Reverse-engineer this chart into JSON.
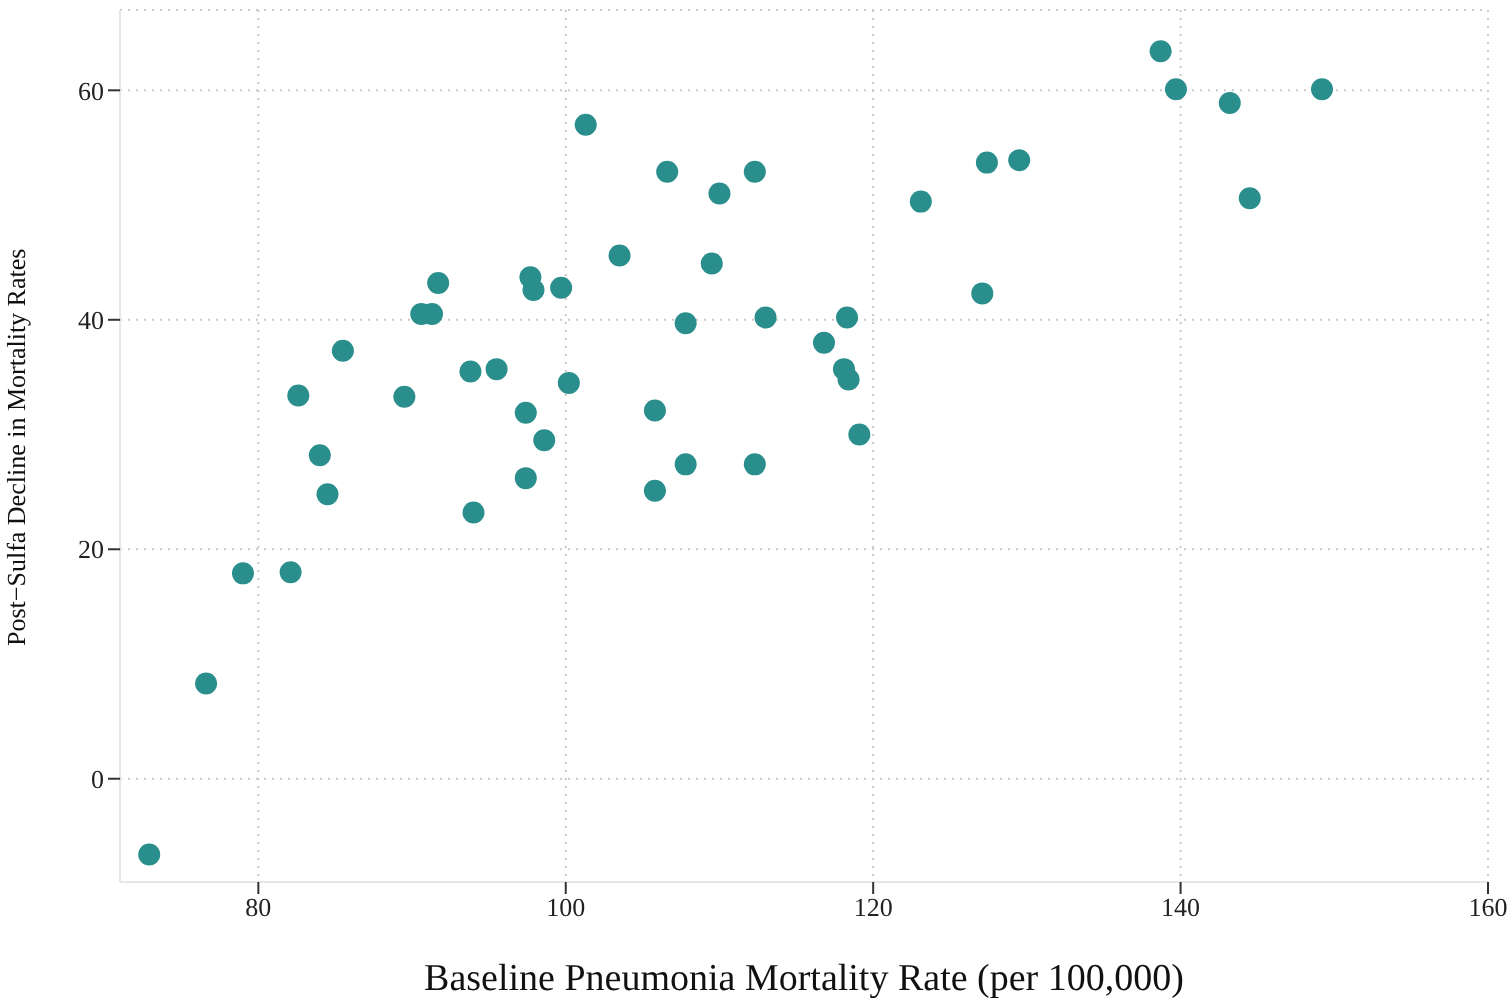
{
  "chart_data": {
    "type": "scatter",
    "xlabel": "Baseline Pneumonia Mortality Rate (per 100,000)",
    "ylabel": "Post−Sulfa Decline in Mortality Rates",
    "x": [
      72.9,
      76.6,
      79.0,
      82.1,
      82.6,
      84.0,
      84.5,
      85.5,
      89.5,
      90.6,
      91.3,
      91.7,
      93.8,
      94.0,
      95.5,
      97.4,
      97.4,
      97.7,
      97.9,
      98.6,
      99.7,
      100.2,
      101.3,
      103.5,
      105.8,
      105.8,
      106.6,
      107.8,
      107.8,
      109.5,
      110.0,
      112.3,
      112.3,
      113.0,
      116.8,
      118.1,
      118.3,
      118.4,
      119.1,
      123.1,
      127.1,
      127.4,
      129.5,
      138.7,
      139.7,
      143.2,
      144.5,
      149.2
    ],
    "series": [
      {
        "color": "#2a8e8c",
        "values": [
          -6.6,
          8.3,
          17.9,
          18.0,
          33.4,
          28.2,
          24.8,
          37.3,
          33.3,
          40.5,
          40.5,
          43.2,
          35.5,
          23.2,
          35.7,
          31.9,
          26.2,
          43.7,
          42.6,
          29.5,
          42.8,
          34.5,
          57.0,
          45.6,
          32.1,
          25.1,
          52.9,
          39.7,
          27.4,
          44.9,
          51.0,
          52.9,
          27.4,
          40.2,
          38.0,
          35.7,
          40.2,
          34.8,
          30.0,
          50.3,
          42.3,
          53.7,
          53.9,
          63.4,
          60.1,
          58.9,
          50.6,
          60.1
        ]
      }
    ],
    "xlim": [
      71,
      160
    ],
    "xticks": [
      80,
      100,
      120,
      140,
      160
    ],
    "ylim": [
      -9,
      67
    ],
    "yticks": [
      0,
      20,
      40,
      60
    ],
    "grid": true,
    "marker": "circle",
    "legend": false
  }
}
